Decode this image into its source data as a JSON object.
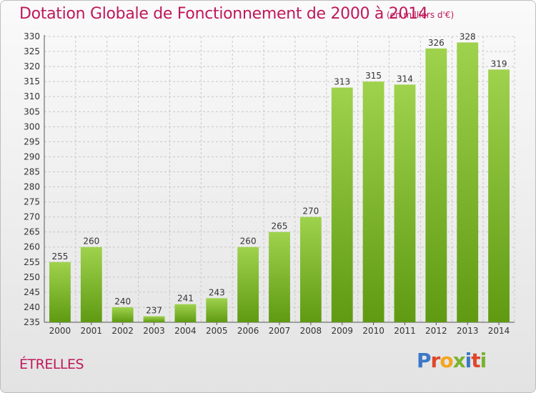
{
  "header": {
    "title": "Dotation Globale de Fonctionnement de 2000 à 2014",
    "subtitle": "(en milliers d'€)"
  },
  "footer": {
    "place": "ÉTRELLES",
    "brand_letters": [
      {
        "ch": "P",
        "color": "#3b78c9"
      },
      {
        "ch": "r",
        "color": "#e0472b"
      },
      {
        "ch": "o",
        "color": "#f3a51f"
      },
      {
        "ch": "x",
        "color": "#7ab32e"
      },
      {
        "ch": "i",
        "color": "#3b78c9"
      },
      {
        "ch": "t",
        "color": "#e0472b"
      },
      {
        "ch": "i",
        "color": "#7ab32e"
      }
    ]
  },
  "colors": {
    "accent": "#c0185a",
    "bar_top": "#9fd24d",
    "bar_bottom": "#5f9a12",
    "grid": "#c8c8c8"
  },
  "chart_data": {
    "type": "bar",
    "title": "Dotation Globale de Fonctionnement de 2000 à 2014",
    "subtitle": "(en milliers d'€)",
    "xlabel": "",
    "ylabel": "",
    "categories": [
      "2000",
      "2001",
      "2002",
      "2003",
      "2004",
      "2005",
      "2006",
      "2007",
      "2008",
      "2009",
      "2010",
      "2011",
      "2012",
      "2013",
      "2014"
    ],
    "values": [
      255,
      260,
      240,
      237,
      241,
      243,
      260,
      265,
      270,
      313,
      315,
      314,
      326,
      328,
      319
    ],
    "ylim": [
      235,
      330
    ],
    "ytick_step": 5,
    "grid": true,
    "legend": "none"
  }
}
